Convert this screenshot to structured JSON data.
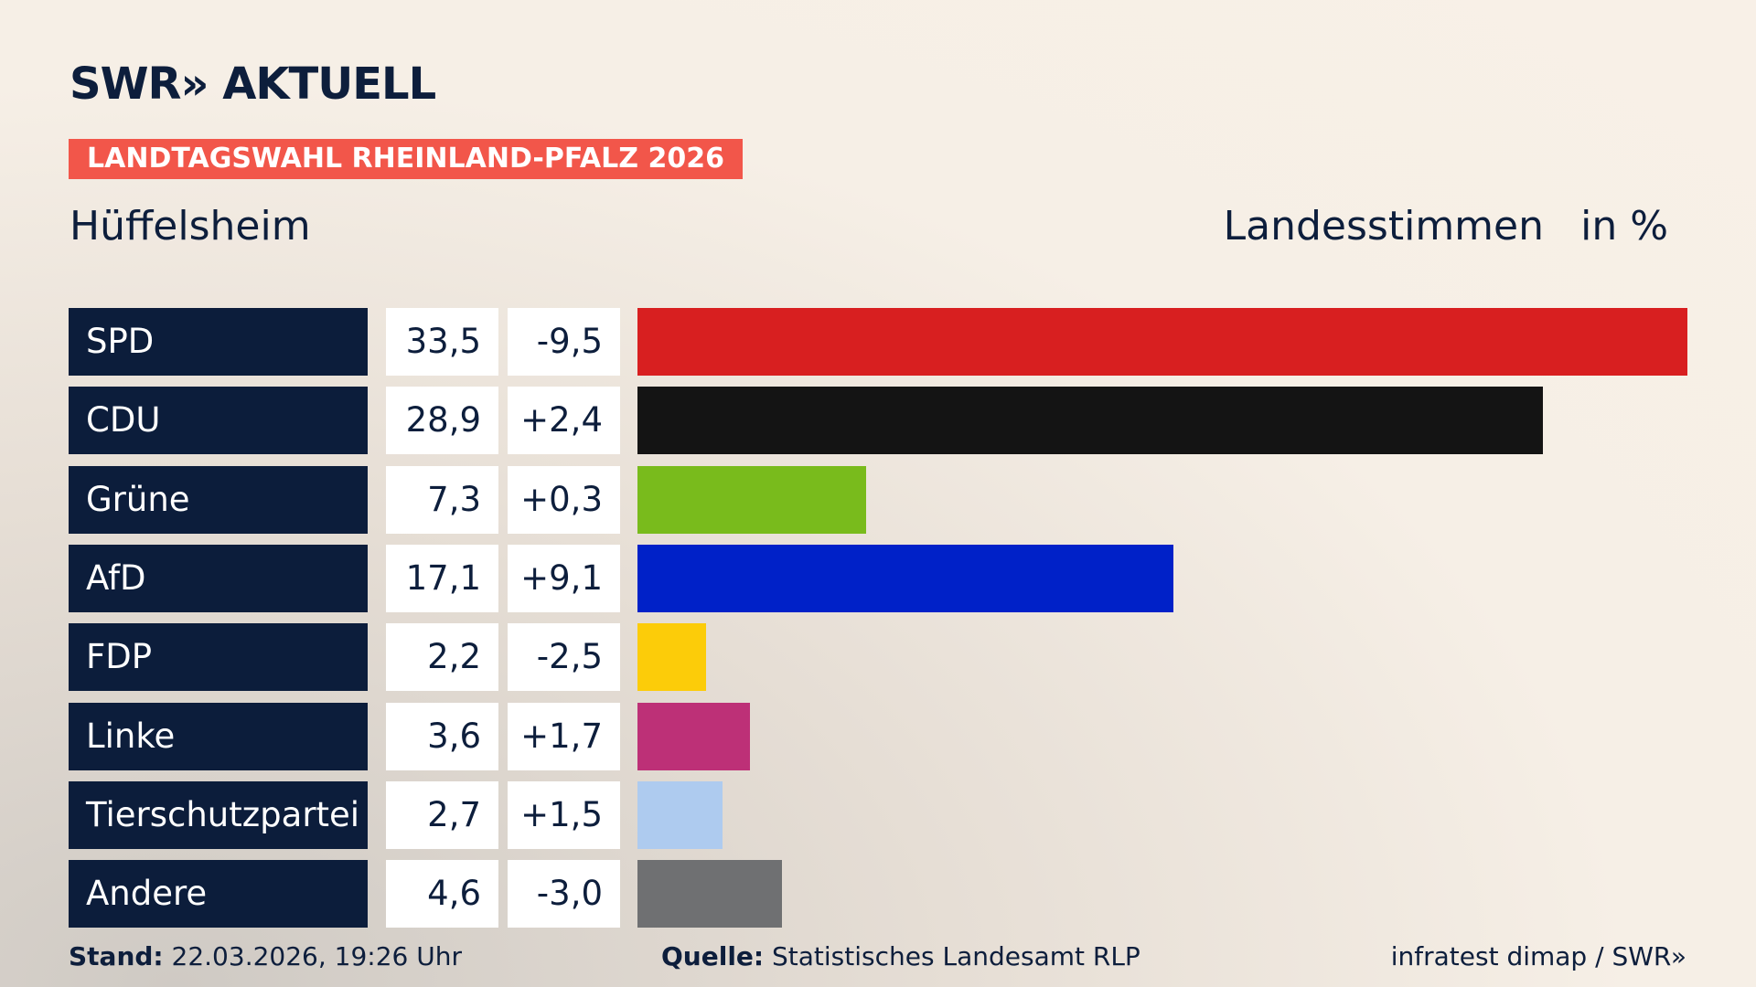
{
  "brand": "SWR» AKTUELL",
  "banner": "LANDTAGSWAHL RHEINLAND-PFALZ 2026",
  "chart_data": {
    "type": "bar",
    "orientation": "horizontal",
    "subtitle": "Hüffelsheim",
    "measure": "Landesstimmen",
    "unit": "in %",
    "categories": [
      "SPD",
      "CDU",
      "Grüne",
      "AfD",
      "FDP",
      "Linke",
      "Tierschutzpartei",
      "Andere"
    ],
    "values": [
      33.5,
      28.9,
      7.3,
      17.1,
      2.2,
      3.6,
      2.7,
      4.6
    ],
    "value_labels": [
      "33,5",
      "28,9",
      "7,3",
      "17,1",
      "2,2",
      "3,6",
      "2,7",
      "4,6"
    ],
    "changes": [
      -9.5,
      2.4,
      0.3,
      9.1,
      -2.5,
      1.7,
      1.5,
      -3.0
    ],
    "change_labels": [
      "-9,5",
      "+2,4",
      "+0,3",
      "+9,1",
      "-2,5",
      "+1,7",
      "+1,5",
      "-3,0"
    ],
    "colors": [
      "#d81f20",
      "#141414",
      "#79bb1c",
      "#0021c8",
      "#fccc09",
      "#bd3077",
      "#aecbef",
      "#6f7072"
    ],
    "xlim": [
      0,
      33.5
    ]
  },
  "footer": {
    "stand_label": "Stand:",
    "stand": "22.03.2026, 19:26 Uhr",
    "source_label": "Quelle:",
    "source": "Statistisches Landesamt RLP",
    "credit": "infratest dimap / SWR»"
  }
}
